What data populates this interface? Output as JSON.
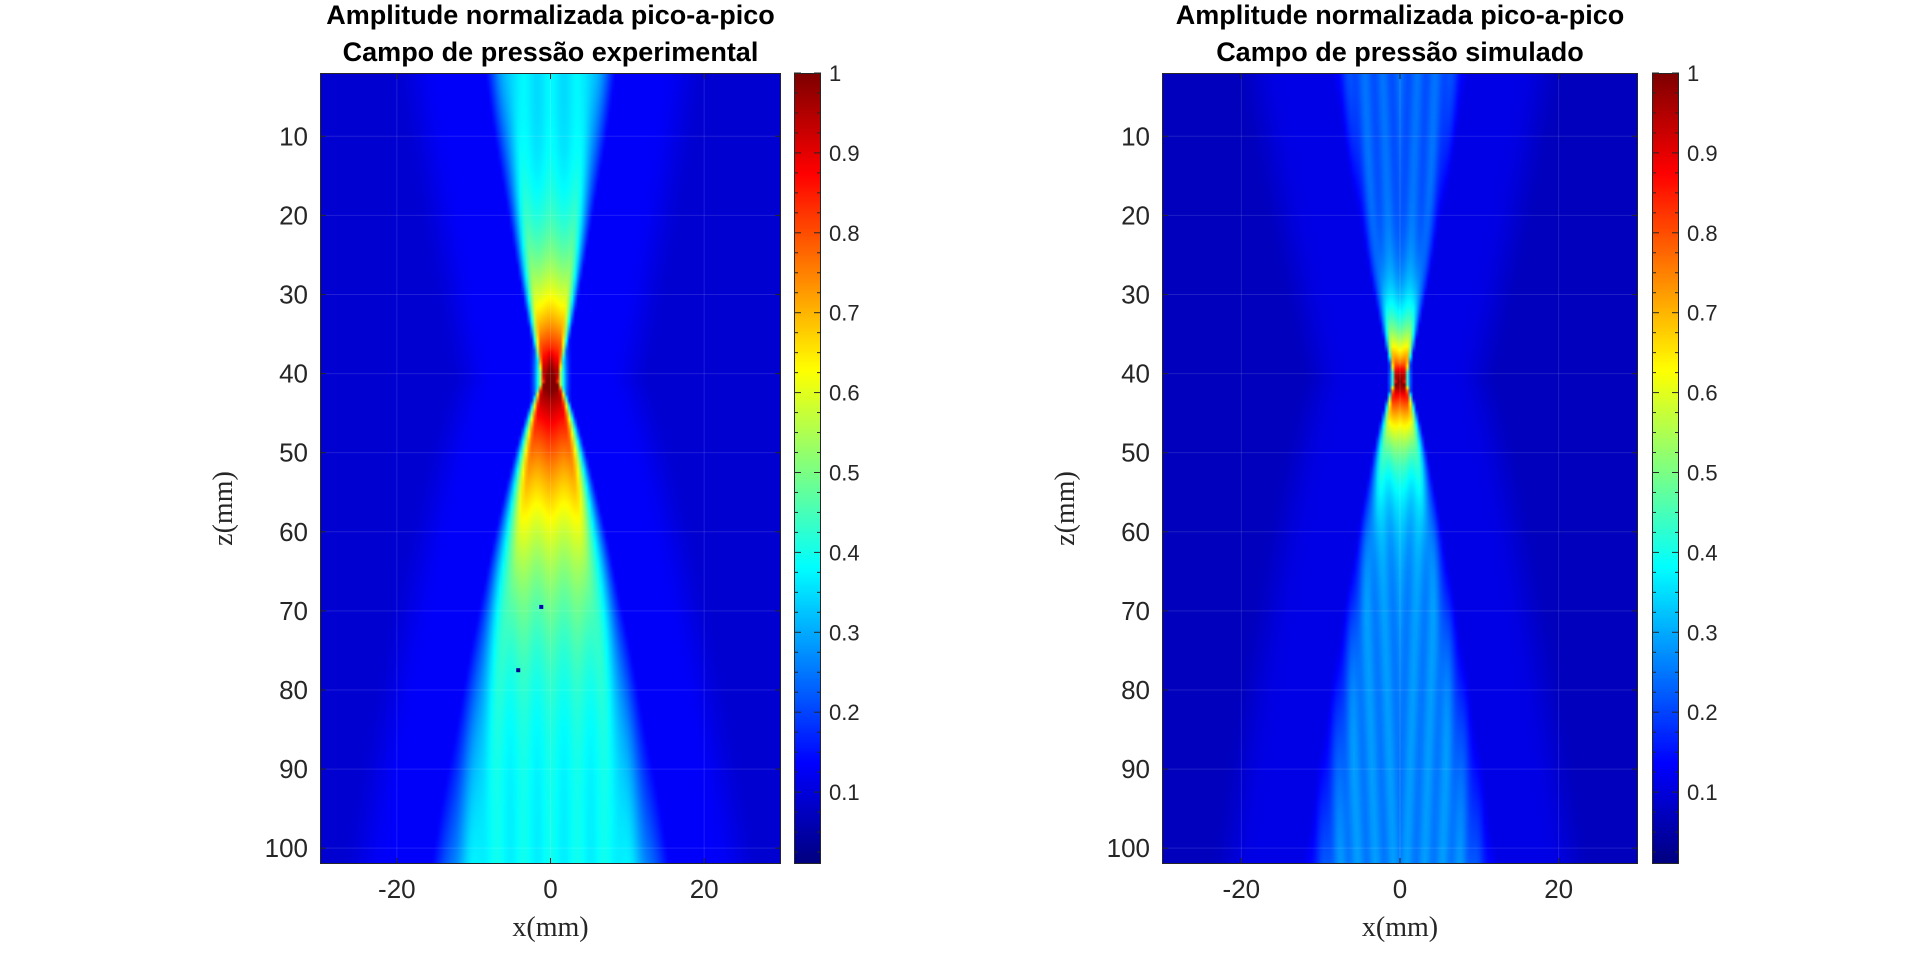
{
  "figure": {
    "background": "#ffffff",
    "colormap": "jet"
  },
  "chart_data": [
    {
      "type": "heatmap",
      "id": "exp",
      "title_lines": [
        "Amplitude normalizada pico-a-pico",
        "Campo de pressão experimental"
      ],
      "xlabel": "x(mm)",
      "ylabel": "z(mm)",
      "xlim": [
        -30,
        30
      ],
      "ylim": [
        2,
        102
      ],
      "y_reversed": true,
      "x_ticks": [
        -20,
        0,
        20
      ],
      "x_tick_labels": [
        "-20",
        "0",
        "20"
      ],
      "y_ticks": [
        10,
        20,
        30,
        40,
        50,
        60,
        70,
        80,
        90,
        100
      ],
      "y_tick_labels": [
        "10",
        "20",
        "30",
        "40",
        "50",
        "60",
        "70",
        "80",
        "90",
        "100"
      ],
      "grid": true,
      "field_model": {
        "focus_z_mm": 41,
        "near_half_width_mm": 8.5,
        "far_half_width_mm": 15.5,
        "focal_half_width_mm": 1.3,
        "peak": 1.0,
        "near_amplitude": 0.34,
        "far_amplitude": 0.36,
        "background": 0.08,
        "far_base_z_mm": 70,
        "far_base_amplitude": 0.46
      },
      "anomalies": [
        {
          "x_mm": -1.2,
          "z_mm": 69.5,
          "value": 0.05
        },
        {
          "x_mm": -4.2,
          "z_mm": 77.5,
          "value": 0.02
        }
      ],
      "colorbar": {
        "range": [
          0.01,
          1
        ],
        "ticks": [
          0.1,
          0.2,
          0.3,
          0.4,
          0.5,
          0.6,
          0.7,
          0.8,
          0.9,
          1
        ],
        "tick_labels": [
          "0.1",
          "0.2",
          "0.3",
          "0.4",
          "0.5",
          "0.6",
          "0.7",
          "0.8",
          "0.9",
          "1"
        ]
      }
    },
    {
      "type": "heatmap",
      "id": "sim",
      "title_lines": [
        "Amplitude normalizada pico-a-pico",
        "Campo de pressão simulado"
      ],
      "xlabel": "x(mm)",
      "ylabel": "z(mm)",
      "xlim": [
        -30,
        30
      ],
      "ylim": [
        2,
        102
      ],
      "y_reversed": true,
      "x_ticks": [
        -20,
        0,
        20
      ],
      "x_tick_labels": [
        "-20",
        "0",
        "20"
      ],
      "y_ticks": [
        10,
        20,
        30,
        40,
        50,
        60,
        70,
        80,
        90,
        100
      ],
      "y_tick_labels": [
        "10",
        "20",
        "30",
        "40",
        "50",
        "60",
        "70",
        "80",
        "90",
        "100"
      ],
      "grid": true,
      "field_model": {
        "focus_z_mm": 41,
        "near_half_width_mm": 9.0,
        "far_half_width_mm": 12.5,
        "focal_half_width_mm": 0.8,
        "peak": 1.0,
        "near_amplitude": 0.2,
        "far_amplitude": 0.24,
        "background": 0.06,
        "far_base_z_mm": 70,
        "far_base_amplitude": 0.28
      },
      "anomalies": [],
      "colorbar": {
        "range": [
          0.01,
          1
        ],
        "ticks": [
          0.1,
          0.2,
          0.3,
          0.4,
          0.5,
          0.6,
          0.7,
          0.8,
          0.9,
          1
        ],
        "tick_labels": [
          "0.1",
          "0.2",
          "0.3",
          "0.4",
          "0.5",
          "0.6",
          "0.7",
          "0.8",
          "0.9",
          "1"
        ]
      }
    }
  ]
}
